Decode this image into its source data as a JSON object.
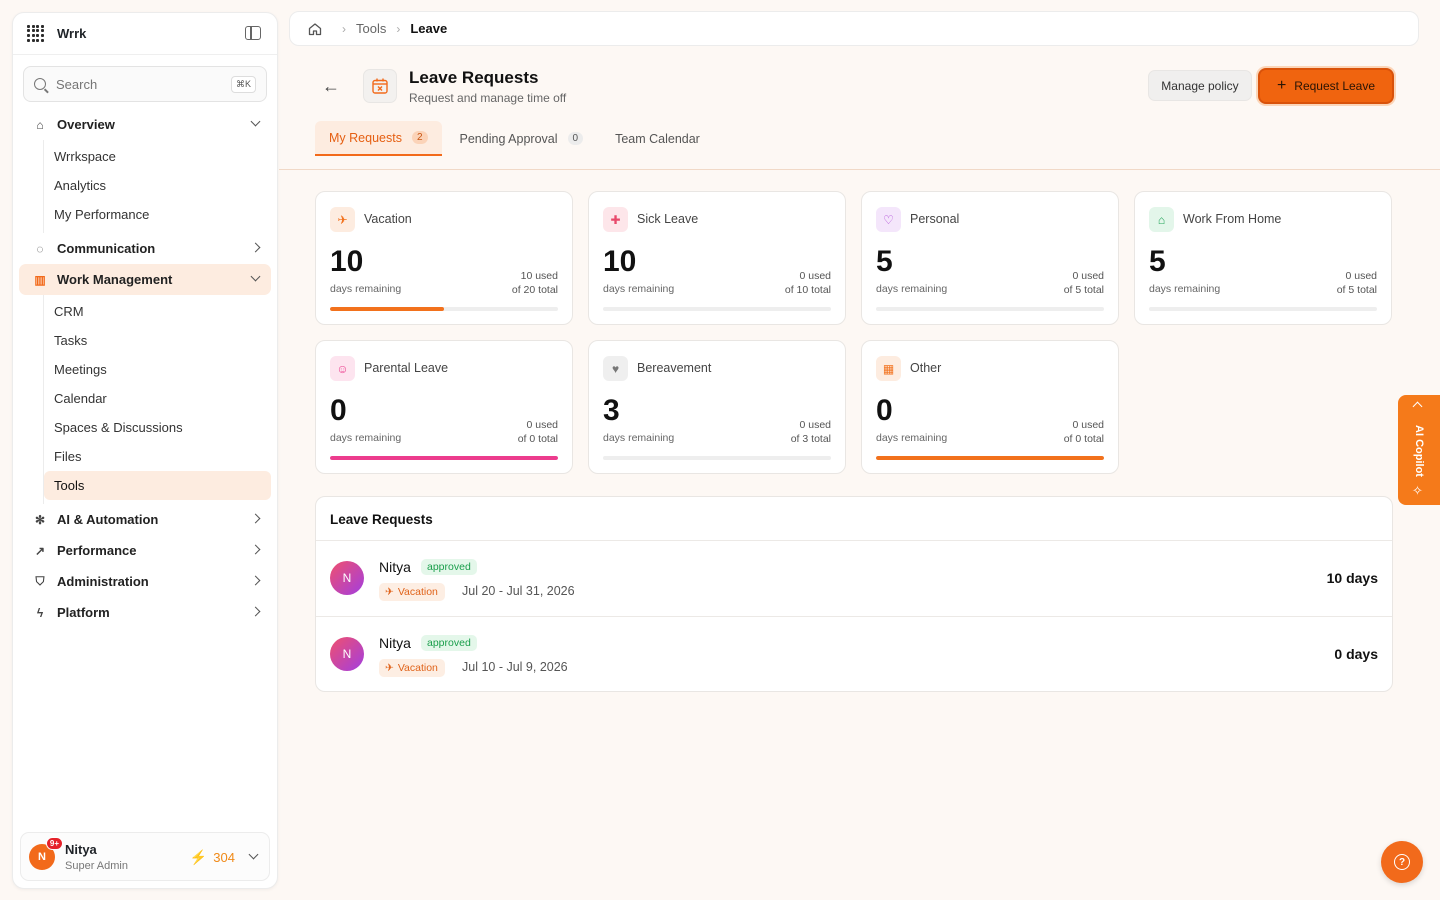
{
  "app": {
    "brand": "Wrrk"
  },
  "search": {
    "placeholder": "Search",
    "shortcut": "⌘K"
  },
  "sidebar": {
    "overview": {
      "label": "Overview",
      "items": [
        "Wrrkspace",
        "Analytics",
        "My Performance"
      ]
    },
    "communication": {
      "label": "Communication"
    },
    "work_management": {
      "label": "Work Management",
      "items": [
        "CRM",
        "Tasks",
        "Meetings",
        "Calendar",
        "Spaces & Discussions",
        "Files",
        "Tools"
      ]
    },
    "ai": {
      "label": "AI & Automation"
    },
    "performance": {
      "label": "Performance"
    },
    "administration": {
      "label": "Administration"
    },
    "platform": {
      "label": "Platform"
    }
  },
  "user": {
    "initial": "N",
    "name": "Nitya",
    "role": "Super Admin",
    "notifications": "9+",
    "points": "304"
  },
  "breadcrumb": {
    "tools": "Tools",
    "current": "Leave"
  },
  "header": {
    "title": "Leave Requests",
    "subtitle": "Request and manage time off",
    "manage_label": "Manage policy",
    "request_label": "Request Leave"
  },
  "tabs": [
    {
      "label": "My Requests",
      "count": "2"
    },
    {
      "label": "Pending Approval",
      "count": "0"
    },
    {
      "label": "Team Calendar"
    }
  ],
  "balances": [
    {
      "name": "Vacation",
      "remaining": "10",
      "remaining_label": "days remaining",
      "used": "10 used",
      "total": "of 20 total",
      "progress": 0.5,
      "color": "#f2711c",
      "icon": "plane-icon",
      "icon_bg": "#fdece0"
    },
    {
      "name": "Sick Leave",
      "remaining": "10",
      "remaining_label": "days remaining",
      "used": "0 used",
      "total": "of 10 total",
      "progress": 0,
      "color": "#e8496b",
      "icon": "medical-cross-icon",
      "icon_bg": "#fde6ea"
    },
    {
      "name": "Personal",
      "remaining": "5",
      "remaining_label": "days remaining",
      "used": "0 used",
      "total": "of 5 total",
      "progress": 0,
      "color": "#b04ad8",
      "icon": "heart-icon",
      "icon_bg": "#f4e6fb"
    },
    {
      "name": "Work From Home",
      "remaining": "5",
      "remaining_label": "days remaining",
      "used": "0 used",
      "total": "of 5 total",
      "progress": 0,
      "color": "#23a55a",
      "icon": "home-icon",
      "icon_bg": "#e3f6ea"
    },
    {
      "name": "Parental Leave",
      "remaining": "0",
      "remaining_label": "days remaining",
      "used": "0 used",
      "total": "of 0 total",
      "progress": 1,
      "color": "#ec3c8d",
      "icon": "baby-icon",
      "icon_bg": "#fde4ef"
    },
    {
      "name": "Bereavement",
      "remaining": "3",
      "remaining_label": "days remaining",
      "used": "0 used",
      "total": "of 3 total",
      "progress": 0,
      "color": "#777777",
      "icon": "heart-icon",
      "icon_bg": "#efefef"
    },
    {
      "name": "Other",
      "remaining": "0",
      "remaining_label": "days remaining",
      "used": "0 used",
      "total": "of 0 total",
      "progress": 1,
      "color": "#f2711c",
      "icon": "calendar-icon",
      "icon_bg": "#fdece0"
    }
  ],
  "requests": {
    "title": "Leave Requests",
    "rows": [
      {
        "initial": "N",
        "name": "Nitya",
        "status": "approved",
        "type": "Vacation",
        "dates": "Jul 20 - Jul 31, 2026",
        "days": "10 days"
      },
      {
        "initial": "N",
        "name": "Nitya",
        "status": "approved",
        "type": "Vacation",
        "dates": "Jul 10 - Jul 9, 2026",
        "days": "0 days"
      }
    ]
  },
  "copilot": {
    "label": "AI Copilot"
  }
}
